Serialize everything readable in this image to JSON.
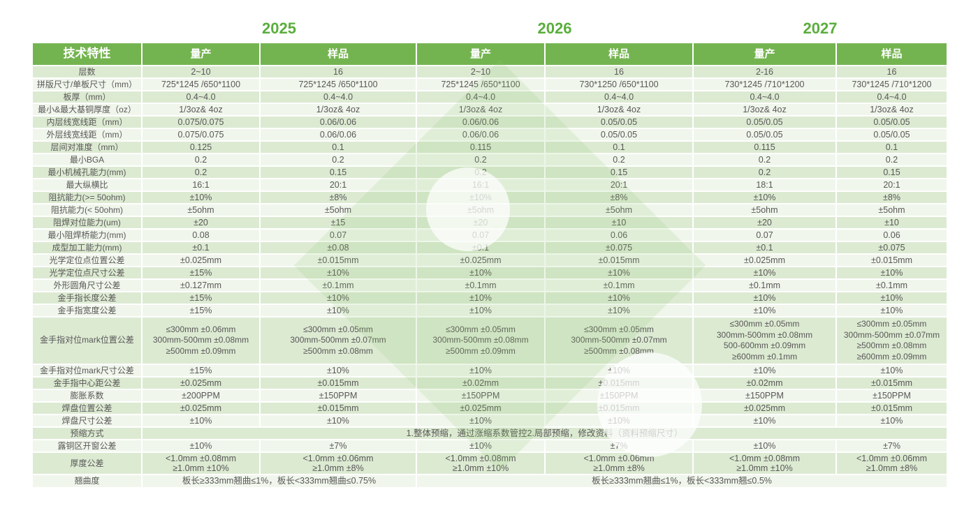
{
  "colors": {
    "header_green": "#74b450",
    "year_green": "#5aae3c",
    "row_odd": "#dcead2",
    "row_even": "#f0f6ec",
    "text_gray": "#595757",
    "watermark_green": "#8ec672"
  },
  "years": [
    "2025",
    "2026",
    "2027"
  ],
  "table": {
    "header": [
      "技术特性",
      "量产",
      "样品",
      "量产",
      "样品",
      "量产",
      "样品"
    ],
    "rows": [
      {
        "type": "normal",
        "label": "层数",
        "values": [
          "2~10",
          "16",
          "2~10",
          "16",
          "2-16",
          "16"
        ]
      },
      {
        "type": "normal",
        "label": "拼版尺寸/单板尺寸（mm）",
        "values": [
          "725*1245 /650*1100",
          "725*1245 /650*1100",
          "725*1245 /650*1100",
          "730*1250 /650*1100",
          "730*1245 /710*1200",
          "730*1245 /710*1200"
        ]
      },
      {
        "type": "normal",
        "label": "板厚（mm）",
        "values": [
          "0.4~4.0",
          "0.4~4.0",
          "0.4~4.0",
          "0.4~4.0",
          "0.4~4.0",
          "0.4~4.0"
        ]
      },
      {
        "type": "normal",
        "label": "最小&最大基铜厚度（oz）",
        "values": [
          "1/3oz& 4oz",
          "1/3oz& 4oz",
          "1/3oz& 4oz",
          "1/3oz& 4oz",
          "1/3oz& 4oz",
          "1/3oz& 4oz"
        ]
      },
      {
        "type": "normal",
        "label": "内层线宽线距（mm）",
        "values": [
          "0.075/0.075",
          "0.06/0.06",
          "0.06/0.06",
          "0.05/0.05",
          "0.05/0.05",
          "0.05/0.05"
        ]
      },
      {
        "type": "normal",
        "label": "外层线宽线距（mm）",
        "values": [
          "0.075/0.075",
          "0.06/0.06",
          "0.06/0.06",
          "0.05/0.05",
          "0.05/0.05",
          "0.05/0.05"
        ]
      },
      {
        "type": "normal",
        "label": "层间对准度（mm）",
        "values": [
          "0.125",
          "0.1",
          "0.115",
          "0.1",
          "0.115",
          "0.1"
        ]
      },
      {
        "type": "normal",
        "label": "最小BGA",
        "values": [
          "0.2",
          "0.2",
          "0.2",
          "0.2",
          "0.2",
          "0.2"
        ]
      },
      {
        "type": "normal",
        "label": "最小机械孔能力(mm)",
        "values": [
          "0.2",
          "0.15",
          "0.2",
          "0.15",
          "0.2",
          "0.15"
        ]
      },
      {
        "type": "normal",
        "label": "最大纵横比",
        "values": [
          "16:1",
          "20:1",
          "16:1",
          "20:1",
          "18:1",
          "20:1"
        ]
      },
      {
        "type": "normal",
        "label": "阻抗能力(>= 50ohm)",
        "values": [
          "±10%",
          "±8%",
          "±10%",
          "±8%",
          "±10%",
          "±8%"
        ]
      },
      {
        "type": "normal",
        "label": "阻抗能力(< 50ohm)",
        "values": [
          "±5ohm",
          "±5ohm",
          "±5ohm",
          "±5ohm",
          "±5ohm",
          "±5ohm"
        ]
      },
      {
        "type": "normal",
        "label": "阻焊对位能力(um)",
        "values": [
          "±20",
          "±15",
          "±20",
          "±10",
          "±20",
          "±10"
        ]
      },
      {
        "type": "normal",
        "label": "最小阻焊桥能力(mm)",
        "values": [
          "0.08",
          "0.07",
          "0.07",
          "0.06",
          "0.07",
          "0.06"
        ]
      },
      {
        "type": "normal",
        "label": "成型加工能力(mm)",
        "values": [
          "±0.1",
          "±0.08",
          "±0.1",
          "±0.075",
          "±0.1",
          "±0.075"
        ]
      },
      {
        "type": "normal",
        "label": "光学定位点位置公差",
        "values": [
          "±0.025mm",
          "±0.015mm",
          "±0.025mm",
          "±0.015mm",
          "±0.025mm",
          "±0.015mm"
        ]
      },
      {
        "type": "normal",
        "label": "光学定位点尺寸公差",
        "values": [
          "±15%",
          "±10%",
          "±10%",
          "±10%",
          "±10%",
          "±10%"
        ]
      },
      {
        "type": "normal",
        "label": "外形圆角尺寸公差",
        "values": [
          "±0.127mm",
          "±0.1mm",
          "±0.1mm",
          "±0.1mm",
          "±0.1mm",
          "±0.1mm"
        ]
      },
      {
        "type": "normal",
        "label": "金手指长度公差",
        "values": [
          "±15%",
          "±10%",
          "±10%",
          "±10%",
          "±10%",
          "±10%"
        ]
      },
      {
        "type": "normal",
        "label": "金手指宽度公差",
        "values": [
          "±15%",
          "±10%",
          "±10%",
          "±10%",
          "±10%",
          "±10%"
        ]
      },
      {
        "type": "mark",
        "label": "金手指对位mark位置公差",
        "values": [
          "≤300mm ±0.06mm\n300mm-500mm ±0.08mm\n≥500mm ±0.09mm",
          "≤300mm ±0.05mm\n300mm-500mm ±0.07mm\n≥500mm ±0.08mm",
          "≤300mm ±0.05mm\n300mm-500mm ±0.08mm\n≥500mm ±0.09mm",
          "≤300mm ±0.05mm\n300mm-500mm ±0.07mm\n≥500mm ±0.08mm",
          "≤300mm ±0.05mm\n300mm-500mm ±0.08mm\n500-600mm ±0.09mm\n≥600mm ±0.1mm",
          "≤300mm ±0.05mm\n300mm-500mm ±0.07mm\n≥500mm ±0.08mm\n≥600mm ±0.09mm"
        ]
      },
      {
        "type": "normal",
        "label": "金手指对位mark尺寸公差",
        "values": [
          "±15%",
          "±10%",
          "±10%",
          "±10%",
          "±10%",
          "±10%"
        ]
      },
      {
        "type": "normal",
        "label": "金手指中心距公差",
        "values": [
          "±0.025mm",
          "±0.015mm",
          "±0.02mm",
          "±0.015mm",
          "±0.02mm",
          "±0.015mm"
        ]
      },
      {
        "type": "normal",
        "label": "膨胀系数",
        "values": [
          "±200PPM",
          "±150PPM",
          "±150PPM",
          "±150PPM",
          "±150PPM",
          "±150PPM"
        ]
      },
      {
        "type": "normal",
        "label": "焊盘位置公差",
        "values": [
          "±0.025mm",
          "±0.015mm",
          "±0.025mm",
          "±0.015mm",
          "±0.025mm",
          "±0.015mm"
        ]
      },
      {
        "type": "normal",
        "label": "焊盘尺寸公差",
        "values": [
          "±10%",
          "±10%",
          "±10%",
          "±10%",
          "±10%",
          "±10%"
        ]
      },
      {
        "type": "span_all",
        "label": "预缩方式",
        "value": "1.整体预缩，通过涨缩系数管控2.局部预缩，修改资料（资料预缩尺寸）"
      },
      {
        "type": "normal",
        "label": "露铜区开窗公差",
        "values": [
          "±10%",
          "±7%",
          "±10%",
          "±7%",
          "±10%",
          "±7%"
        ]
      },
      {
        "type": "thick",
        "label": "厚度公差",
        "values": [
          "<1.0mm ±0.08mm\n≥1.0mm ±10%",
          "<1.0mm ±0.06mm\n≥1.0mm ±8%",
          "<1.0mm ±0.08mm\n≥1.0mm ±10%",
          "<1.0mm ±0.06mm\n≥1.0mm ±8%",
          "<1.0mm ±0.08mm\n≥1.0mm ±10%",
          "<1.0mm ±0.06mm\n≥1.0mm ±8%"
        ]
      },
      {
        "type": "span_split",
        "label": "翘曲度",
        "left": "板长≥333mm翘曲≤1%，板长<333mm翘曲≤0.75%",
        "right": "板长≥333mm翘曲≤1%，板长<333mm翘≤0.5%"
      }
    ]
  }
}
